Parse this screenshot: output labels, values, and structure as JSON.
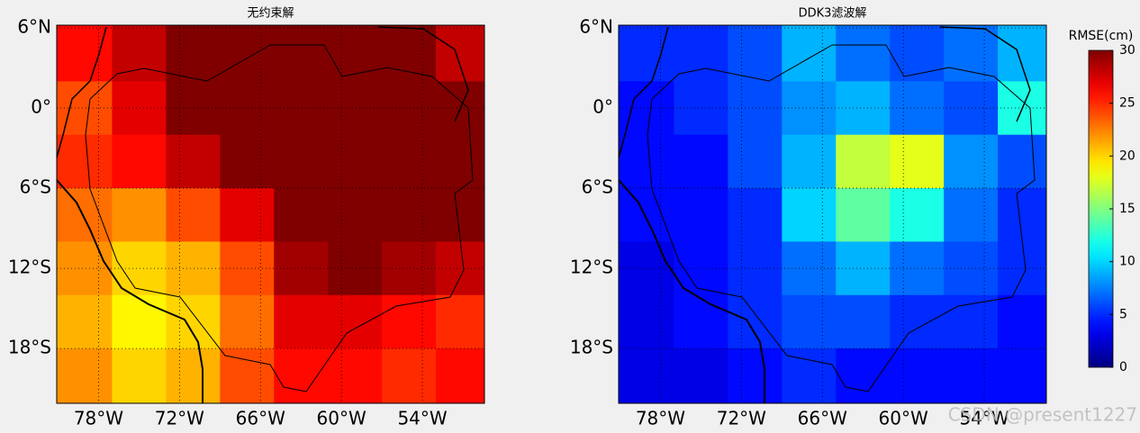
{
  "chart_data": [
    {
      "type": "heatmap",
      "title": "无约束解",
      "x_edges": [
        -81.1,
        -77,
        -73,
        -69,
        -65,
        -61,
        -57,
        -53,
        -49.4
      ],
      "y_edges": [
        6.2,
        2,
        -2,
        -6,
        -10,
        -14,
        -18,
        -22.1
      ],
      "values": [
        [
          26,
          28,
          30,
          30,
          30,
          30,
          30,
          28
        ],
        [
          24,
          27,
          30,
          30,
          30,
          30,
          30,
          30
        ],
        [
          25,
          26,
          28,
          30,
          30,
          30,
          30,
          30
        ],
        [
          23,
          22,
          24,
          27,
          30,
          30,
          30,
          30
        ],
        [
          22,
          20,
          21,
          24,
          29,
          30,
          29,
          28
        ],
        [
          21,
          19,
          20,
          23,
          27,
          27,
          26,
          25
        ],
        [
          22,
          20,
          21,
          24,
          26,
          26,
          25,
          26
        ]
      ],
      "xlim": [
        -81.1,
        -49.4
      ],
      "ylim": [
        -22.1,
        6.2
      ],
      "xticks": [
        {
          "value": -78,
          "label": "78°W"
        },
        {
          "value": -72,
          "label": "72°W"
        },
        {
          "value": -66,
          "label": "66°W"
        },
        {
          "value": -60,
          "label": "60°W"
        },
        {
          "value": -54,
          "label": "54°W"
        }
      ],
      "yticks": [
        {
          "value": 6,
          "label": "6°N"
        },
        {
          "value": 0,
          "label": "0°"
        },
        {
          "value": -6,
          "label": "6°S"
        },
        {
          "value": -12,
          "label": "12°S"
        },
        {
          "value": -18,
          "label": "18°S"
        }
      ],
      "grid": true,
      "colormap": "jet"
    },
    {
      "type": "heatmap",
      "title": "DDK3滤波解",
      "x_edges": [
        -81.1,
        -77,
        -73,
        -69,
        -65,
        -61,
        -57,
        -53,
        -49.4
      ],
      "y_edges": [
        6.2,
        2,
        -2,
        -6,
        -10,
        -14,
        -18,
        -22.1
      ],
      "values": [
        [
          5,
          5,
          6,
          9,
          7,
          6,
          7,
          9
        ],
        [
          4,
          5,
          6,
          8,
          9,
          7,
          6,
          12
        ],
        [
          4,
          4,
          6,
          9,
          17,
          18,
          8,
          6
        ],
        [
          4,
          4,
          5,
          10,
          14,
          12,
          7,
          5
        ],
        [
          3,
          4,
          5,
          7,
          9,
          7,
          6,
          5
        ],
        [
          3,
          4,
          5,
          6,
          6,
          5,
          5,
          4
        ],
        [
          3,
          3,
          4,
          5,
          4,
          4,
          4,
          4
        ]
      ],
      "xlim": [
        -81.1,
        -49.4
      ],
      "ylim": [
        -22.1,
        6.2
      ],
      "xticks": [
        {
          "value": -78,
          "label": "78°W"
        },
        {
          "value": -72,
          "label": "72°W"
        },
        {
          "value": -66,
          "label": "66°W"
        },
        {
          "value": -60,
          "label": "60°W"
        },
        {
          "value": -54,
          "label": "54°W"
        }
      ],
      "yticks": [
        {
          "value": 6,
          "label": "6°N"
        },
        {
          "value": 0,
          "label": "0°"
        },
        {
          "value": -6,
          "label": "6°S"
        },
        {
          "value": -12,
          "label": "12°S"
        },
        {
          "value": -18,
          "label": "18°S"
        }
      ],
      "grid": true,
      "colormap": "jet"
    }
  ],
  "colorbar": {
    "label": "RMSE(cm)",
    "clim": [
      0,
      30
    ],
    "ticks": [
      0,
      5,
      10,
      15,
      20,
      25,
      30
    ]
  },
  "watermark": "CSDN @present1227"
}
